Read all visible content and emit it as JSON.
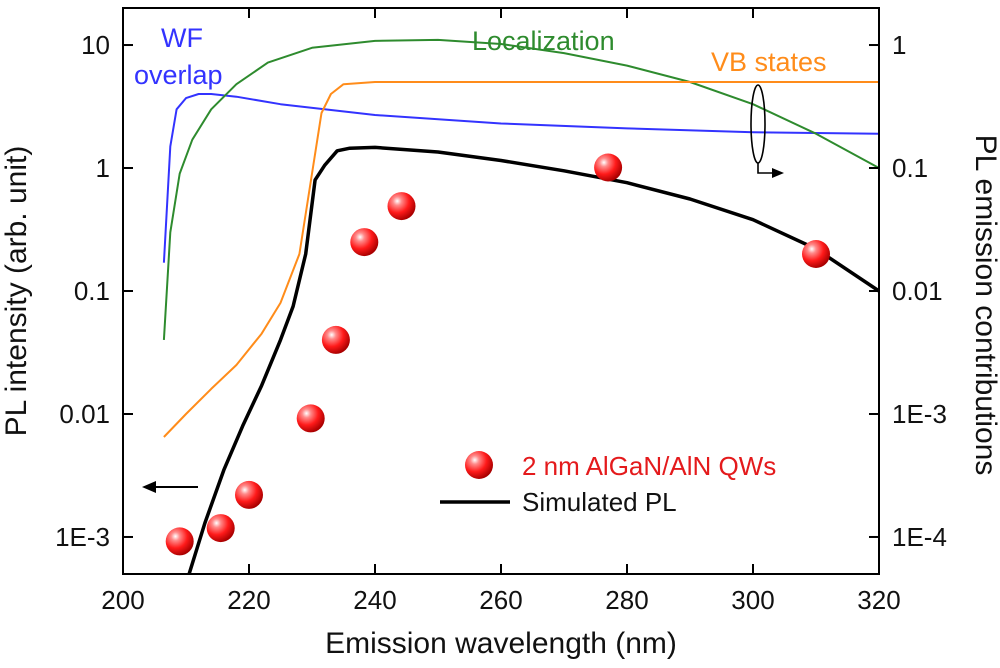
{
  "chart_data": {
    "type": "line",
    "xlabel": "Emission wavelength (nm)",
    "ylabel_left": "PL intensity (arb. unit)",
    "ylabel_right": "PL emission contributions",
    "xlim": [
      200,
      320
    ],
    "x_ticks": [
      200,
      220,
      240,
      260,
      280,
      300,
      320
    ],
    "x_tick_labels": [
      "200",
      "220",
      "240",
      "260",
      "280",
      "300",
      "320"
    ],
    "y_left_scale": "log",
    "y_left_lim": [
      0.0005,
      20
    ],
    "y_left_ticks": [
      0.001,
      0.01,
      0.1,
      1,
      10
    ],
    "y_left_tick_labels": [
      "1E-3",
      "0.01",
      "0.1",
      "1",
      "10"
    ],
    "y_right_scale": "log",
    "y_right_lim": [
      5e-05,
      2
    ],
    "y_right_ticks": [
      0.0001,
      0.001,
      0.01,
      0.1,
      1
    ],
    "y_right_tick_labels": [
      "1E-4",
      "1E-3",
      "0.01",
      "0.1",
      "1"
    ],
    "grid": false,
    "legend_position": "bottom-right",
    "series": [
      {
        "name": "Simulated PL",
        "axis": "left",
        "color": "#000000",
        "style": "line",
        "x": [
          210.5,
          213,
          216,
          219,
          222,
          225,
          227,
          229,
          230.5,
          232,
          234,
          236,
          240,
          250,
          260,
          270,
          280,
          290,
          300,
          310,
          320
        ],
        "y": [
          0.0005,
          0.0013,
          0.0035,
          0.008,
          0.017,
          0.04,
          0.075,
          0.2,
          0.8,
          1.05,
          1.38,
          1.45,
          1.47,
          1.35,
          1.15,
          0.95,
          0.76,
          0.56,
          0.38,
          0.22,
          0.1
        ]
      },
      {
        "name": "2 nm AlGaN/AlN QWs",
        "axis": "left",
        "color": "#e41a1c",
        "style": "marker",
        "x": [
          209,
          215.5,
          220,
          229.8,
          233.8,
          238.3,
          244.2,
          277,
          310
        ],
        "y": [
          0.00092,
          0.00118,
          0.0022,
          0.0092,
          0.04,
          0.25,
          0.49,
          1.01,
          0.2
        ]
      },
      {
        "name": "WF overlap",
        "axis": "right",
        "color": "#3333ff",
        "style": "line",
        "x": [
          206.5,
          207.5,
          208.5,
          210,
          212,
          214,
          218,
          225,
          240,
          260,
          280,
          300,
          320
        ],
        "y": [
          0.017,
          0.15,
          0.3,
          0.37,
          0.4,
          0.4,
          0.38,
          0.33,
          0.27,
          0.23,
          0.21,
          0.195,
          0.19
        ]
      },
      {
        "name": "Localization",
        "axis": "right",
        "color": "#2e8b2e",
        "style": "line",
        "x": [
          206.5,
          207.5,
          209,
          211,
          214,
          218,
          223,
          230,
          240,
          250,
          260,
          270,
          280,
          290,
          300,
          310,
          320
        ],
        "y": [
          0.004,
          0.03,
          0.09,
          0.17,
          0.3,
          0.48,
          0.72,
          0.95,
          1.08,
          1.1,
          1.02,
          0.86,
          0.68,
          0.5,
          0.33,
          0.19,
          0.1
        ]
      },
      {
        "name": "VB states",
        "axis": "right",
        "color": "#ff8c1a",
        "style": "line",
        "x": [
          206.5,
          210,
          214,
          218,
          222,
          225,
          228,
          230,
          231.5,
          233,
          235,
          240,
          260,
          280,
          300,
          320
        ],
        "y": [
          0.00065,
          0.001,
          0.0016,
          0.0025,
          0.0045,
          0.008,
          0.02,
          0.09,
          0.28,
          0.4,
          0.48,
          0.5,
          0.5,
          0.5,
          0.5,
          0.5
        ]
      }
    ],
    "annotations": [
      {
        "text": "WF",
        "color": "#3333ff"
      },
      {
        "text": "overlap",
        "color": "#3333ff"
      },
      {
        "text": "Localization",
        "color": "#2e8b2e"
      },
      {
        "text": "VB states",
        "color": "#ff8c1a"
      }
    ],
    "legend": [
      {
        "label": "2 nm AlGaN/AlN QWs",
        "color": "#e41a1c",
        "symbol": "ball"
      },
      {
        "label": "Simulated PL",
        "color": "#000000",
        "symbol": "line"
      }
    ]
  }
}
